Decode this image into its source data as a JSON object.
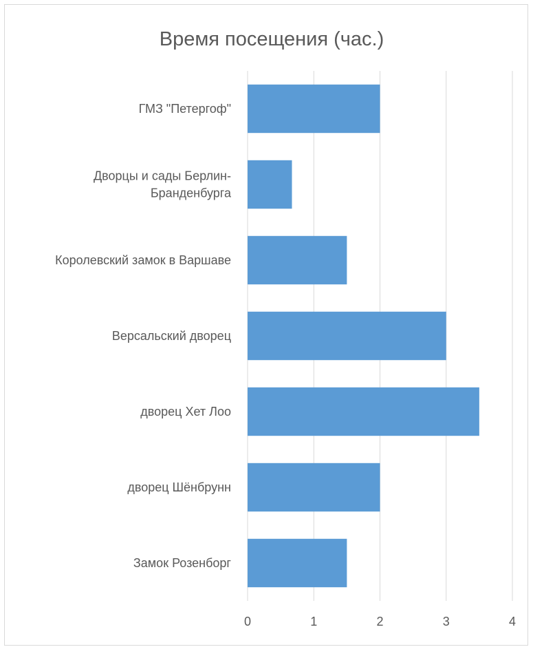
{
  "chart_data": {
    "type": "bar",
    "orientation": "horizontal",
    "title": "Время посещения (час.)",
    "xlabel": "",
    "ylabel": "",
    "categories": [
      [
        "ГМЗ \"Петергоф\""
      ],
      [
        "Дворцы и сады Берлин-",
        "Бранденбурга"
      ],
      [
        "Королевский замок в Варшаве"
      ],
      [
        "Версальский дворец"
      ],
      [
        "дворец Хет Лоо"
      ],
      [
        "дворец Шёнбрунн"
      ],
      [
        "Замок Розенборг"
      ]
    ],
    "values": [
      2,
      0.67,
      1.5,
      3,
      3.5,
      2,
      1.5
    ],
    "xlim": [
      0,
      4
    ],
    "x_ticks": [
      "0",
      "1",
      "2",
      "3",
      "4"
    ],
    "grid": true,
    "legend": "none",
    "bar_color": "#5b9bd5",
    "grid_color": "#d9d9d9",
    "text_color": "#595959"
  }
}
